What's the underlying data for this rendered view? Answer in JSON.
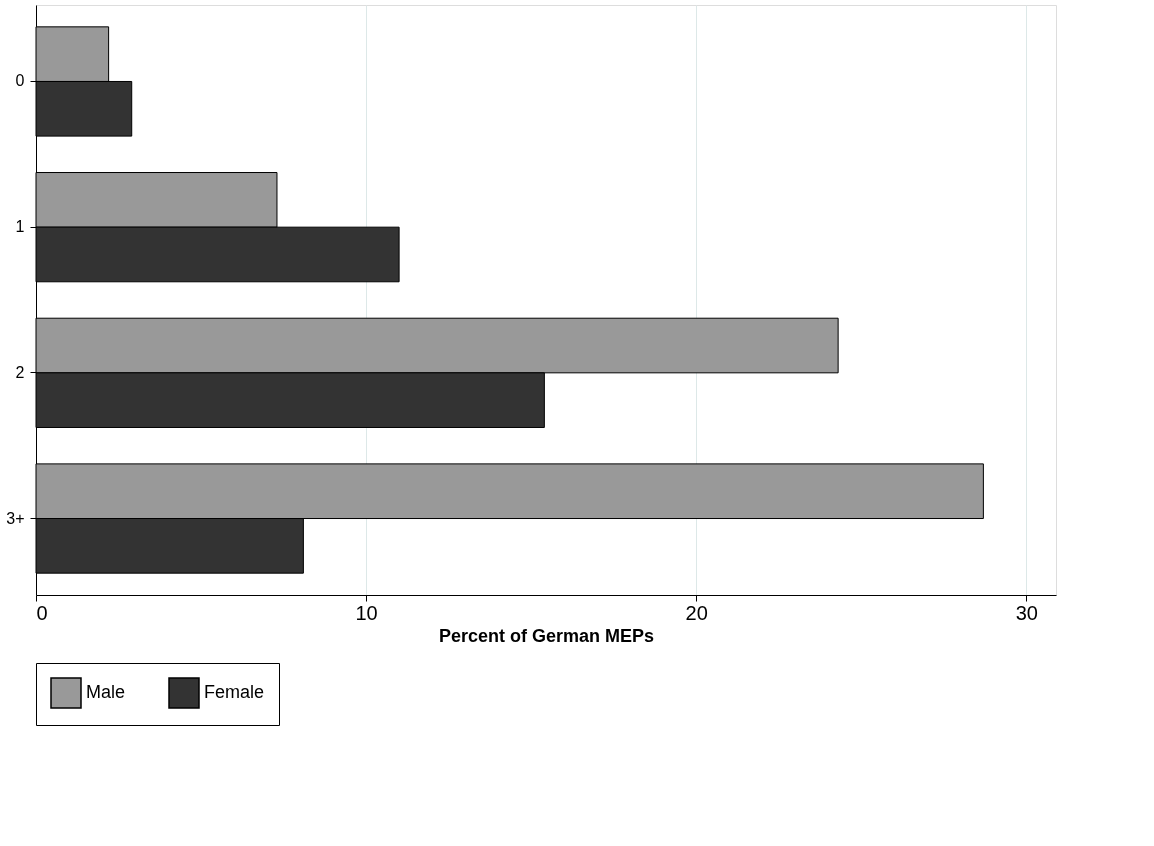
{
  "chart_data": {
    "type": "bar",
    "orientation": "horizontal",
    "xlabel": "Percent of German MEPs",
    "categories": [
      "0",
      "1",
      "2",
      "3+"
    ],
    "series": [
      {
        "name": "Male",
        "color": "#999999",
        "values": [
          2.2,
          7.3,
          24.3,
          28.7
        ]
      },
      {
        "name": "Female",
        "color": "#333333",
        "values": [
          2.9,
          11.0,
          15.4,
          8.1
        ]
      }
    ],
    "xlim": [
      0,
      30.9
    ],
    "xticks": [
      0,
      10,
      20,
      30
    ],
    "grid": "x",
    "legend": "bottom"
  }
}
